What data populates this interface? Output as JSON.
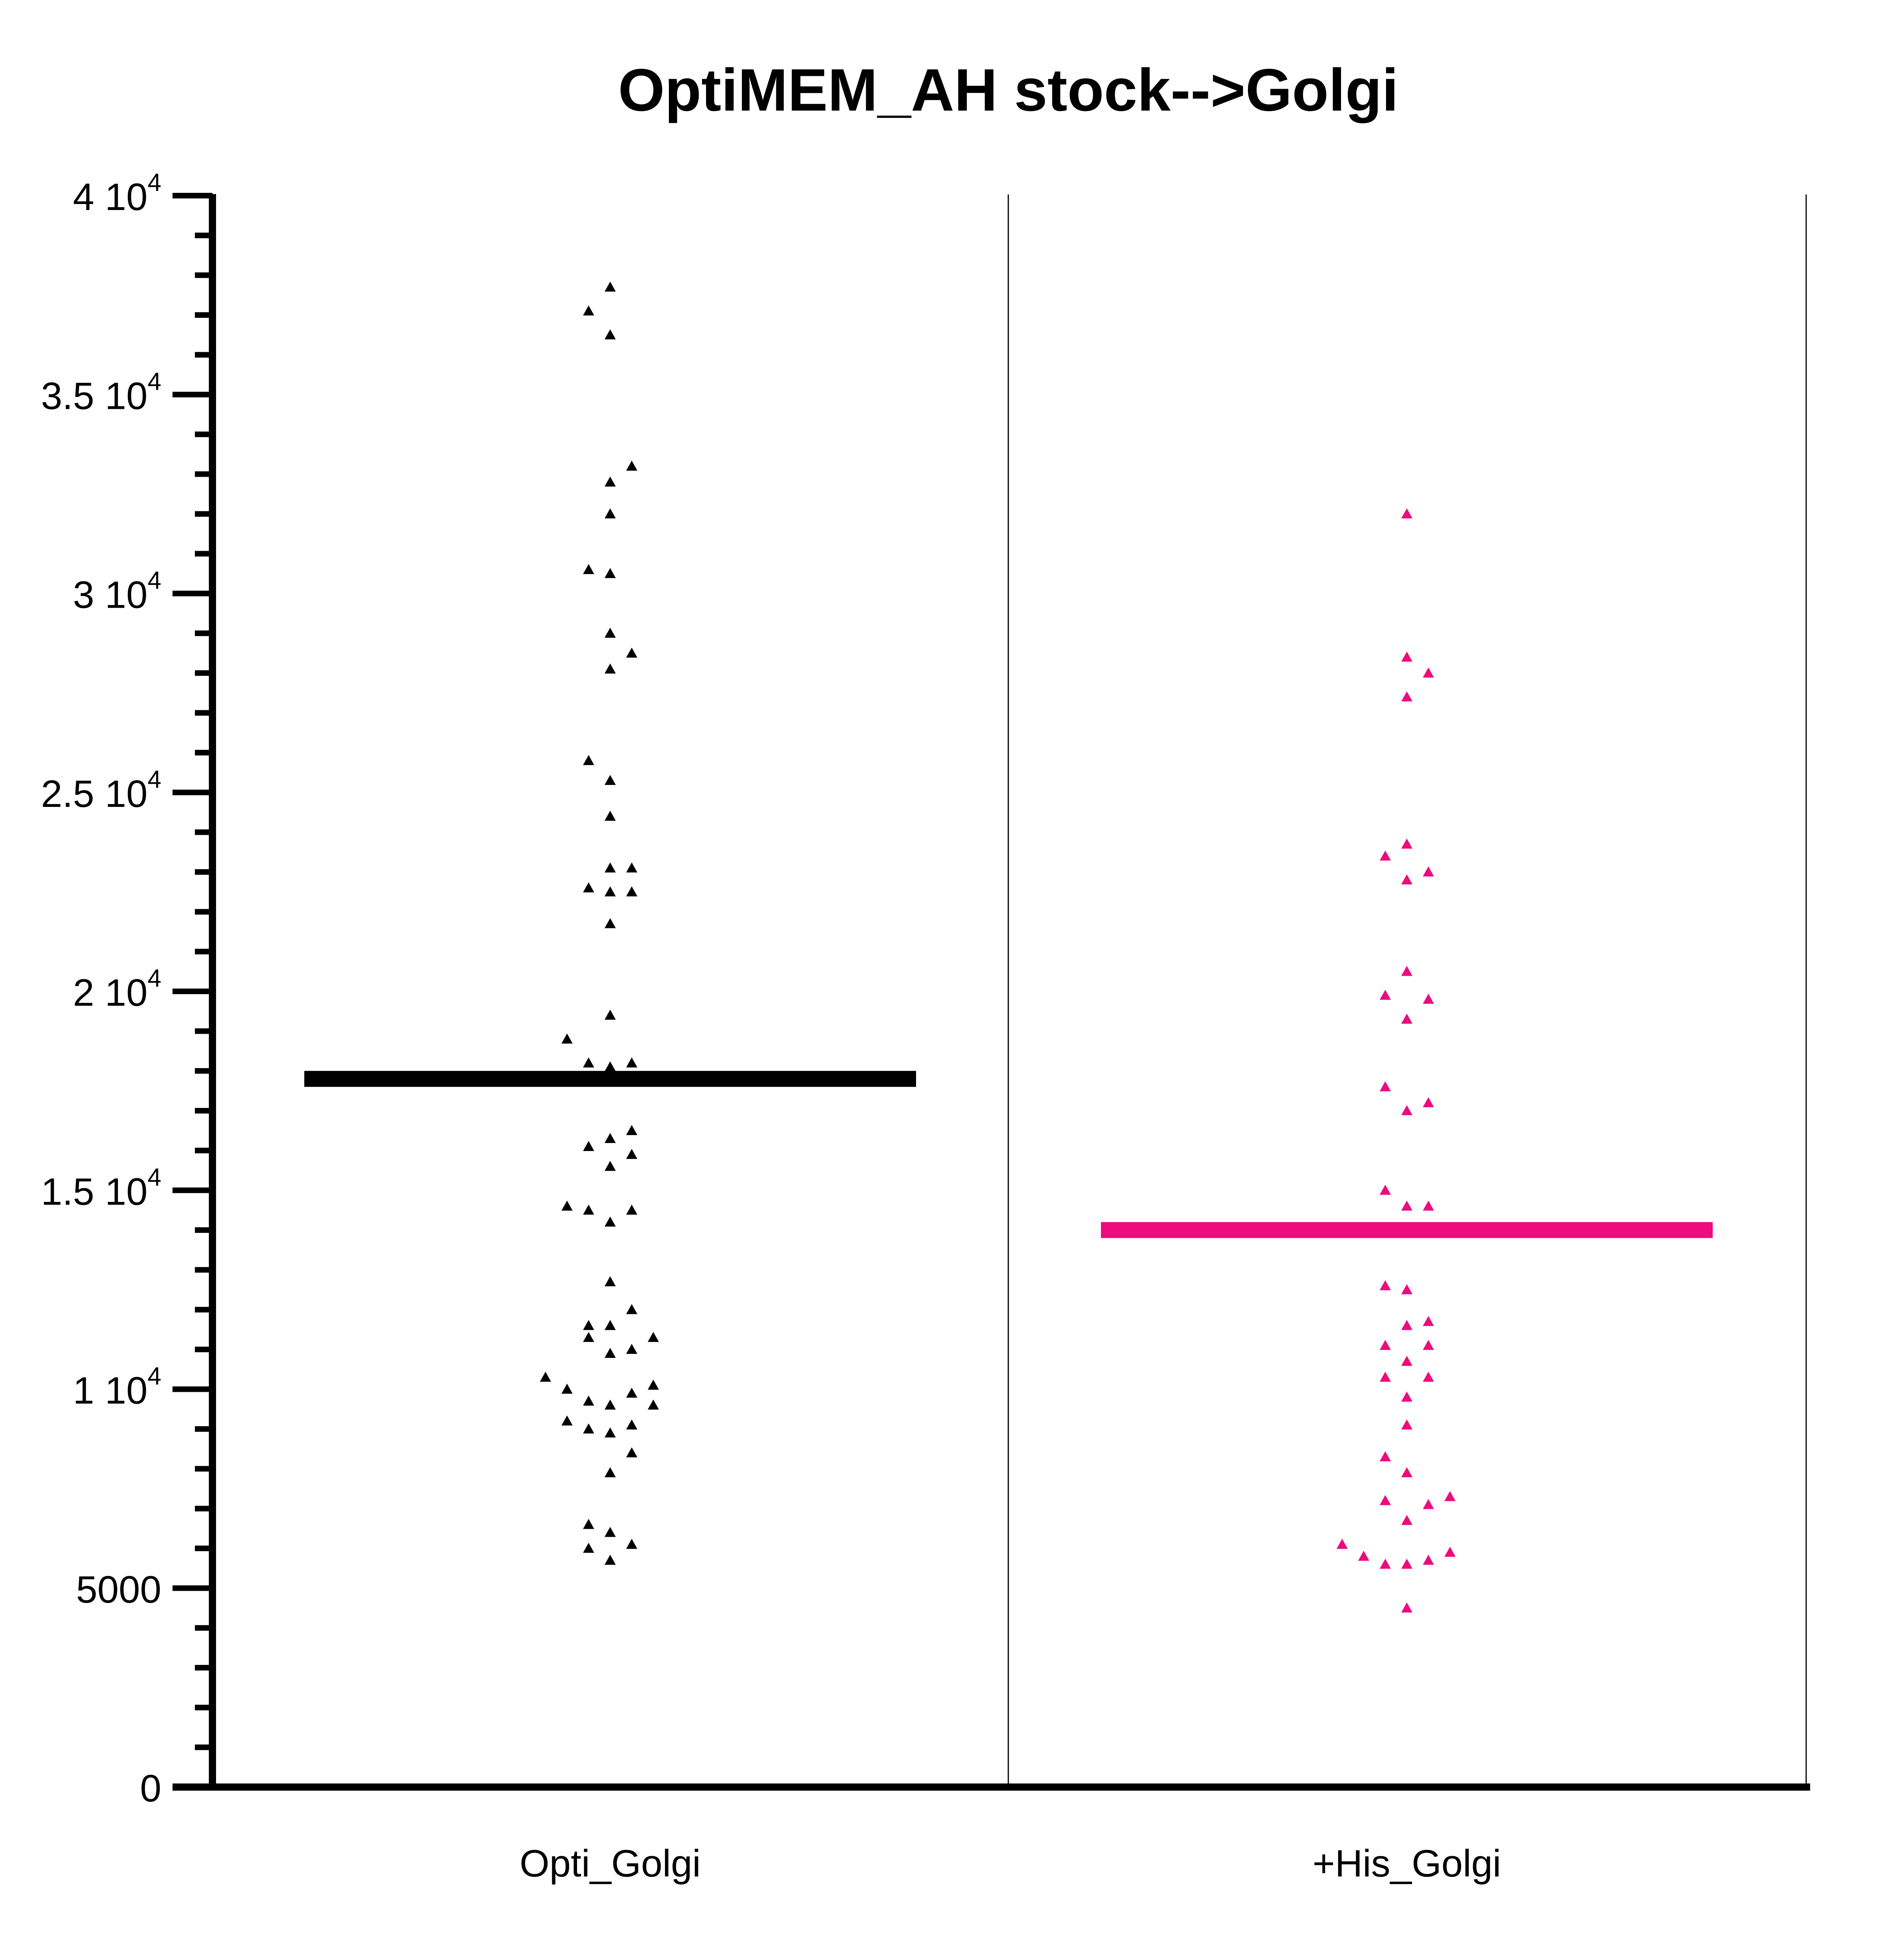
{
  "chart_data": {
    "type": "scatter",
    "title": "OptiMEM_AH stock-->Golgi",
    "xlabel": "",
    "ylabel": "",
    "ylim": [
      0,
      40000
    ],
    "grid": false,
    "legend": "none",
    "y_ticks": [
      {
        "value": 0,
        "mantissa": "0",
        "exp": ""
      },
      {
        "value": 5000,
        "mantissa": "5000",
        "exp": ""
      },
      {
        "value": 10000,
        "mantissa": "1 10",
        "exp": "4"
      },
      {
        "value": 15000,
        "mantissa": "1.5 10",
        "exp": "4"
      },
      {
        "value": 20000,
        "mantissa": "2 10",
        "exp": "4"
      },
      {
        "value": 25000,
        "mantissa": "2.5 10",
        "exp": "4"
      },
      {
        "value": 30000,
        "mantissa": "3 10",
        "exp": "4"
      },
      {
        "value": 35000,
        "mantissa": "3.5 10",
        "exp": "4"
      },
      {
        "value": 40000,
        "mantissa": "4 10",
        "exp": "4"
      }
    ],
    "categories": [
      "Opti_Golgi",
      "+His_Golgi"
    ],
    "series": [
      {
        "category": "Opti_Golgi",
        "color": "#000000",
        "mean": 17800,
        "points": [
          {
            "value": 37700,
            "offset": 0
          },
          {
            "value": 37100,
            "offset": -1
          },
          {
            "value": 36500,
            "offset": 0
          },
          {
            "value": 33200,
            "offset": 1
          },
          {
            "value": 32800,
            "offset": 0
          },
          {
            "value": 32000,
            "offset": 0
          },
          {
            "value": 30600,
            "offset": -1
          },
          {
            "value": 30500,
            "offset": 0
          },
          {
            "value": 29000,
            "offset": 0
          },
          {
            "value": 28500,
            "offset": 1
          },
          {
            "value": 28100,
            "offset": 0
          },
          {
            "value": 25800,
            "offset": -1
          },
          {
            "value": 25300,
            "offset": 0
          },
          {
            "value": 24400,
            "offset": 0
          },
          {
            "value": 23100,
            "offset": 0
          },
          {
            "value": 23100,
            "offset": 1
          },
          {
            "value": 22600,
            "offset": -1
          },
          {
            "value": 22500,
            "offset": 0
          },
          {
            "value": 22500,
            "offset": 1
          },
          {
            "value": 21700,
            "offset": 0
          },
          {
            "value": 19400,
            "offset": 0
          },
          {
            "value": 18800,
            "offset": -2
          },
          {
            "value": 18200,
            "offset": -1
          },
          {
            "value": 18100,
            "offset": 0
          },
          {
            "value": 18200,
            "offset": 1
          },
          {
            "value": 16500,
            "offset": 1
          },
          {
            "value": 16300,
            "offset": 0
          },
          {
            "value": 16100,
            "offset": -1
          },
          {
            "value": 15900,
            "offset": 1
          },
          {
            "value": 15600,
            "offset": 0
          },
          {
            "value": 14600,
            "offset": -2
          },
          {
            "value": 14500,
            "offset": -1
          },
          {
            "value": 14500,
            "offset": 1
          },
          {
            "value": 14200,
            "offset": 0
          },
          {
            "value": 12700,
            "offset": 0
          },
          {
            "value": 12000,
            "offset": 1
          },
          {
            "value": 11600,
            "offset": -1
          },
          {
            "value": 11600,
            "offset": 0
          },
          {
            "value": 11300,
            "offset": 2
          },
          {
            "value": 11300,
            "offset": -1
          },
          {
            "value": 11000,
            "offset": 1
          },
          {
            "value": 10900,
            "offset": 0
          },
          {
            "value": 10300,
            "offset": -3
          },
          {
            "value": 10000,
            "offset": -2
          },
          {
            "value": 10100,
            "offset": 2
          },
          {
            "value": 9900,
            "offset": 1
          },
          {
            "value": 9700,
            "offset": -1
          },
          {
            "value": 9600,
            "offset": 0
          },
          {
            "value": 9600,
            "offset": 2
          },
          {
            "value": 9200,
            "offset": -2
          },
          {
            "value": 9100,
            "offset": 1
          },
          {
            "value": 9000,
            "offset": -1
          },
          {
            "value": 8900,
            "offset": 0
          },
          {
            "value": 8400,
            "offset": 1
          },
          {
            "value": 7900,
            "offset": 0
          },
          {
            "value": 6600,
            "offset": -1
          },
          {
            "value": 6400,
            "offset": 0
          },
          {
            "value": 6100,
            "offset": 1
          },
          {
            "value": 6000,
            "offset": -1
          },
          {
            "value": 5700,
            "offset": 0
          }
        ]
      },
      {
        "category": "+His_Golgi",
        "color": "#ee0a7f",
        "mean": 14000,
        "points": [
          {
            "value": 32000,
            "offset": 0
          },
          {
            "value": 28400,
            "offset": 0
          },
          {
            "value": 28000,
            "offset": 1
          },
          {
            "value": 27400,
            "offset": 0
          },
          {
            "value": 23700,
            "offset": 0
          },
          {
            "value": 23400,
            "offset": -1
          },
          {
            "value": 23000,
            "offset": 1
          },
          {
            "value": 22800,
            "offset": 0
          },
          {
            "value": 20500,
            "offset": 0
          },
          {
            "value": 19900,
            "offset": -1
          },
          {
            "value": 19800,
            "offset": 1
          },
          {
            "value": 19300,
            "offset": 0
          },
          {
            "value": 17600,
            "offset": -1
          },
          {
            "value": 17200,
            "offset": 1
          },
          {
            "value": 17000,
            "offset": 0
          },
          {
            "value": 15000,
            "offset": -1
          },
          {
            "value": 14600,
            "offset": 0
          },
          {
            "value": 14600,
            "offset": 1
          },
          {
            "value": 12600,
            "offset": -1
          },
          {
            "value": 12500,
            "offset": 0
          },
          {
            "value": 11700,
            "offset": 1
          },
          {
            "value": 11600,
            "offset": 0
          },
          {
            "value": 11100,
            "offset": -1
          },
          {
            "value": 11100,
            "offset": 1
          },
          {
            "value": 10700,
            "offset": 0
          },
          {
            "value": 10300,
            "offset": -1
          },
          {
            "value": 10300,
            "offset": 1
          },
          {
            "value": 9800,
            "offset": 0
          },
          {
            "value": 9100,
            "offset": 0
          },
          {
            "value": 8300,
            "offset": -1
          },
          {
            "value": 7900,
            "offset": 0
          },
          {
            "value": 7300,
            "offset": 2
          },
          {
            "value": 7200,
            "offset": -1
          },
          {
            "value": 7100,
            "offset": 1
          },
          {
            "value": 6700,
            "offset": 0
          },
          {
            "value": 6100,
            "offset": -3
          },
          {
            "value": 5800,
            "offset": -2
          },
          {
            "value": 5900,
            "offset": 2
          },
          {
            "value": 5600,
            "offset": -1
          },
          {
            "value": 5600,
            "offset": 0
          },
          {
            "value": 5700,
            "offset": 1
          },
          {
            "value": 4500,
            "offset": 0
          }
        ]
      }
    ]
  }
}
